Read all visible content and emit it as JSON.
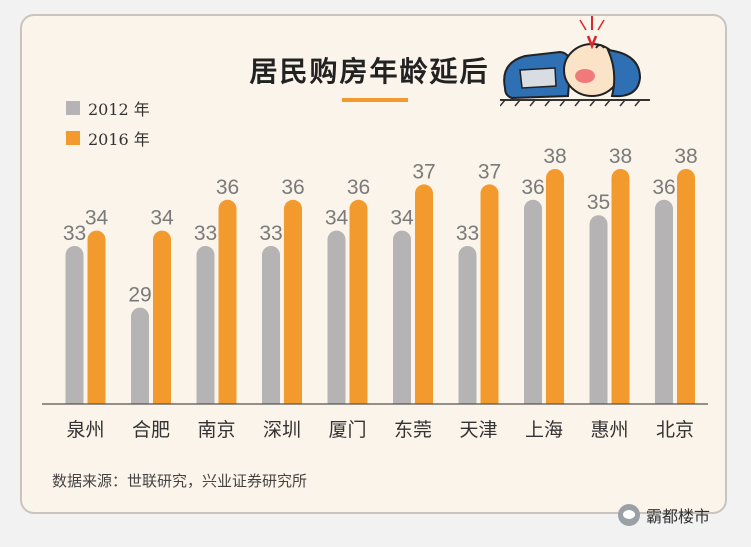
{
  "chart_data": {
    "type": "bar",
    "title": "居民购房年龄延后",
    "categories": [
      "泉州",
      "合肥",
      "南京",
      "深圳",
      "厦门",
      "东莞",
      "天津",
      "上海",
      "惠州",
      "北京"
    ],
    "series": [
      {
        "name": "2012 年",
        "color": "#b5b3b4",
        "values": [
          33,
          29,
          33,
          33,
          34,
          34,
          33,
          36,
          35,
          36
        ]
      },
      {
        "name": "2016 年",
        "color": "#f39a2f",
        "values": [
          34,
          34,
          36,
          36,
          36,
          37,
          37,
          38,
          38,
          38
        ]
      }
    ],
    "legend_position": "top-left",
    "grid": false
  },
  "source": "数据来源：世联研究，兴业证券研究所",
  "watermark": "霸都楼市",
  "icons": {
    "mascot": "sleeping-cartoon-icon",
    "watermark": "wechat-icon"
  }
}
